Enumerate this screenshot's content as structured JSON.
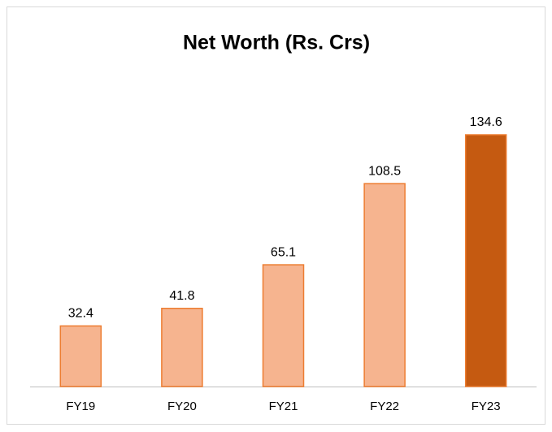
{
  "chart_data": {
    "type": "bar",
    "title": "Net Worth (Rs. Crs)",
    "categories": [
      "FY19",
      "FY20",
      "FY21",
      "FY22",
      "FY23"
    ],
    "values": [
      32.4,
      41.8,
      65.1,
      108.5,
      134.6
    ],
    "colors": [
      "#f6b48f",
      "#f6b48f",
      "#f6b48f",
      "#f6b48f",
      "#c55a11"
    ],
    "edge_color": "#ed7d31"
  }
}
